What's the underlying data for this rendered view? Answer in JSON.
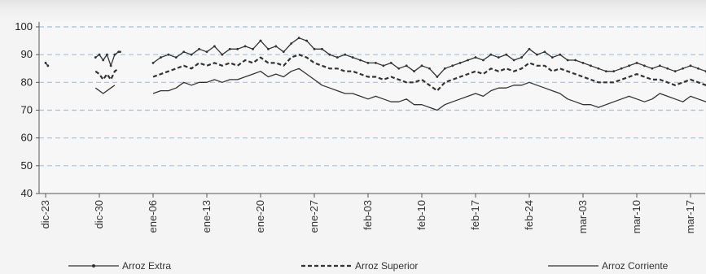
{
  "chart_data": {
    "type": "line",
    "title": "",
    "xlabel": "",
    "ylabel": "",
    "ylim": [
      40,
      100
    ],
    "yticks": [
      40,
      50,
      60,
      70,
      80,
      90,
      100
    ],
    "x_tick_labels": [
      "dic-23",
      "dic-30",
      "ene-06",
      "ene-13",
      "ene-20",
      "ene-27",
      "feb-03",
      "feb-10",
      "feb-17",
      "feb-24",
      "mar-03",
      "mar-10",
      "mar-17"
    ],
    "x_start": "dic-23",
    "x_tick_interval_days": 7,
    "x_end_day_offset": 88,
    "grid": "horizontal dashed",
    "legend": "bottom",
    "colors": {
      "line": "#333333",
      "grid": "#9cc3e6",
      "axis": "#555555",
      "background": "#f4f4f4"
    },
    "series": [
      {
        "name": "Arroz Extra",
        "style": "solid-with-markers",
        "points": [
          [
            0,
            87
          ],
          [
            0.3,
            86
          ],
          [
            6.5,
            89
          ],
          [
            7.0,
            90
          ],
          [
            7.5,
            88
          ],
          [
            8.0,
            90
          ],
          [
            8.5,
            86
          ],
          [
            9.0,
            90
          ],
          [
            9.5,
            91
          ],
          [
            9.7,
            91
          ],
          [
            14,
            87
          ],
          [
            15,
            89
          ],
          [
            16,
            90
          ],
          [
            17,
            89
          ],
          [
            18,
            91
          ],
          [
            19,
            90
          ],
          [
            20,
            92
          ],
          [
            21,
            91
          ],
          [
            22,
            93
          ],
          [
            23,
            90
          ],
          [
            24,
            92
          ],
          [
            25,
            92
          ],
          [
            26,
            93
          ],
          [
            27,
            92
          ],
          [
            28,
            95
          ],
          [
            29,
            92
          ],
          [
            30,
            93
          ],
          [
            31,
            91
          ],
          [
            32,
            94
          ],
          [
            33,
            96
          ],
          [
            34,
            95
          ],
          [
            35,
            92
          ],
          [
            36,
            92
          ],
          [
            37,
            90
          ],
          [
            38,
            89
          ],
          [
            39,
            90
          ],
          [
            40,
            89
          ],
          [
            41,
            88
          ],
          [
            42,
            87
          ],
          [
            43,
            87
          ],
          [
            44,
            86
          ],
          [
            45,
            87
          ],
          [
            46,
            85
          ],
          [
            47,
            86
          ],
          [
            48,
            84
          ],
          [
            49,
            86
          ],
          [
            50,
            85
          ],
          [
            51,
            82
          ],
          [
            52,
            85
          ],
          [
            53,
            86
          ],
          [
            54,
            87
          ],
          [
            55,
            88
          ],
          [
            56,
            89
          ],
          [
            57,
            88
          ],
          [
            58,
            90
          ],
          [
            59,
            89
          ],
          [
            60,
            90
          ],
          [
            61,
            88
          ],
          [
            62,
            89
          ],
          [
            63,
            92
          ],
          [
            64,
            90
          ],
          [
            65,
            91
          ],
          [
            66,
            89
          ],
          [
            67,
            90
          ],
          [
            68,
            88
          ],
          [
            69,
            88
          ],
          [
            70,
            87
          ],
          [
            71,
            86
          ],
          [
            72,
            85
          ],
          [
            73,
            84
          ],
          [
            74,
            84
          ],
          [
            75,
            85
          ],
          [
            76,
            86
          ],
          [
            77,
            87
          ],
          [
            78,
            86
          ],
          [
            79,
            85
          ],
          [
            80,
            86
          ],
          [
            81,
            85
          ],
          [
            82,
            84
          ],
          [
            83,
            85
          ],
          [
            84,
            86
          ],
          [
            85,
            85
          ],
          [
            86,
            84
          ],
          [
            87,
            83
          ],
          [
            88,
            84
          ]
        ]
      },
      {
        "name": "Arroz Superior",
        "style": "dashed",
        "points": [
          [
            6.5,
            84
          ],
          [
            7.0,
            83
          ],
          [
            7.5,
            81
          ],
          [
            8.0,
            83
          ],
          [
            8.5,
            81
          ],
          [
            9.0,
            84
          ],
          [
            9.5,
            85
          ],
          [
            14,
            82
          ],
          [
            15,
            83
          ],
          [
            16,
            84
          ],
          [
            17,
            85
          ],
          [
            18,
            86
          ],
          [
            19,
            85
          ],
          [
            20,
            87
          ],
          [
            21,
            86
          ],
          [
            22,
            87
          ],
          [
            23,
            86
          ],
          [
            24,
            87
          ],
          [
            25,
            86
          ],
          [
            26,
            88
          ],
          [
            27,
            87
          ],
          [
            28,
            89
          ],
          [
            29,
            87
          ],
          [
            30,
            87
          ],
          [
            31,
            86
          ],
          [
            32,
            89
          ],
          [
            33,
            90
          ],
          [
            34,
            89
          ],
          [
            35,
            87
          ],
          [
            36,
            86
          ],
          [
            37,
            85
          ],
          [
            38,
            85
          ],
          [
            39,
            84
          ],
          [
            40,
            84
          ],
          [
            41,
            83
          ],
          [
            42,
            82
          ],
          [
            43,
            82
          ],
          [
            44,
            81
          ],
          [
            45,
            82
          ],
          [
            46,
            81
          ],
          [
            47,
            80
          ],
          [
            48,
            80
          ],
          [
            49,
            81
          ],
          [
            50,
            79
          ],
          [
            51,
            77
          ],
          [
            52,
            80
          ],
          [
            53,
            81
          ],
          [
            54,
            82
          ],
          [
            55,
            83
          ],
          [
            56,
            84
          ],
          [
            57,
            83
          ],
          [
            58,
            85
          ],
          [
            59,
            84
          ],
          [
            60,
            85
          ],
          [
            61,
            84
          ],
          [
            62,
            85
          ],
          [
            63,
            87
          ],
          [
            64,
            86
          ],
          [
            65,
            86
          ],
          [
            66,
            84
          ],
          [
            67,
            85
          ],
          [
            68,
            84
          ],
          [
            69,
            83
          ],
          [
            70,
            82
          ],
          [
            71,
            81
          ],
          [
            72,
            80
          ],
          [
            73,
            80
          ],
          [
            74,
            80
          ],
          [
            75,
            81
          ],
          [
            76,
            82
          ],
          [
            77,
            83
          ],
          [
            78,
            82
          ],
          [
            79,
            81
          ],
          [
            80,
            81
          ],
          [
            81,
            80
          ],
          [
            82,
            79
          ],
          [
            83,
            80
          ],
          [
            84,
            81
          ],
          [
            85,
            80
          ],
          [
            86,
            79
          ],
          [
            87,
            78
          ],
          [
            88,
            77
          ]
        ]
      },
      {
        "name": "Arroz Corriente",
        "style": "solid",
        "points": [
          [
            6.5,
            78
          ],
          [
            7.5,
            76
          ],
          [
            8.5,
            78
          ],
          [
            9.0,
            79
          ],
          [
            14,
            76
          ],
          [
            15,
            77
          ],
          [
            16,
            77
          ],
          [
            17,
            78
          ],
          [
            18,
            80
          ],
          [
            19,
            79
          ],
          [
            20,
            80
          ],
          [
            21,
            80
          ],
          [
            22,
            81
          ],
          [
            23,
            80
          ],
          [
            24,
            81
          ],
          [
            25,
            81
          ],
          [
            26,
            82
          ],
          [
            27,
            83
          ],
          [
            28,
            84
          ],
          [
            29,
            82
          ],
          [
            30,
            83
          ],
          [
            31,
            82
          ],
          [
            32,
            84
          ],
          [
            33,
            85
          ],
          [
            34,
            83
          ],
          [
            35,
            81
          ],
          [
            36,
            79
          ],
          [
            37,
            78
          ],
          [
            38,
            77
          ],
          [
            39,
            76
          ],
          [
            40,
            76
          ],
          [
            41,
            75
          ],
          [
            42,
            74
          ],
          [
            43,
            75
          ],
          [
            44,
            74
          ],
          [
            45,
            73
          ],
          [
            46,
            73
          ],
          [
            47,
            74
          ],
          [
            48,
            72
          ],
          [
            49,
            72
          ],
          [
            50,
            71
          ],
          [
            51,
            70
          ],
          [
            52,
            72
          ],
          [
            53,
            73
          ],
          [
            54,
            74
          ],
          [
            55,
            75
          ],
          [
            56,
            76
          ],
          [
            57,
            75
          ],
          [
            58,
            77
          ],
          [
            59,
            78
          ],
          [
            60,
            78
          ],
          [
            61,
            79
          ],
          [
            62,
            79
          ],
          [
            63,
            80
          ],
          [
            64,
            79
          ],
          [
            65,
            78
          ],
          [
            66,
            77
          ],
          [
            67,
            76
          ],
          [
            68,
            74
          ],
          [
            69,
            73
          ],
          [
            70,
            72
          ],
          [
            71,
            72
          ],
          [
            72,
            71
          ],
          [
            73,
            72
          ],
          [
            74,
            73
          ],
          [
            75,
            74
          ],
          [
            76,
            75
          ],
          [
            77,
            74
          ],
          [
            78,
            73
          ],
          [
            79,
            74
          ],
          [
            80,
            76
          ],
          [
            81,
            75
          ],
          [
            82,
            74
          ],
          [
            83,
            73
          ],
          [
            84,
            75
          ],
          [
            85,
            74
          ],
          [
            86,
            73
          ],
          [
            87,
            72
          ],
          [
            88,
            71
          ]
        ]
      }
    ]
  }
}
